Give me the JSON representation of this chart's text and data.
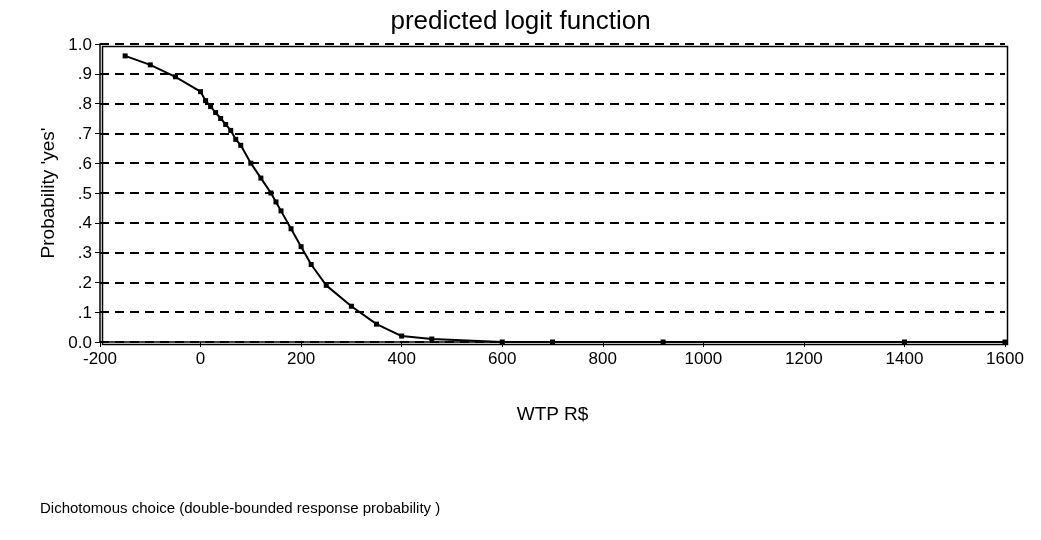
{
  "chart_data": {
    "type": "line",
    "title": "predicted logit function",
    "xlabel": "WTP R$",
    "ylabel": "Probability 'yes'",
    "annotations": [
      "Dichotomous choice (double-bounded response probability )"
    ],
    "x": [
      -150,
      -100,
      -50,
      0,
      10,
      20,
      30,
      40,
      50,
      60,
      70,
      80,
      100,
      120,
      140,
      150,
      160,
      180,
      200,
      220,
      250,
      300,
      350,
      400,
      460,
      600,
      700,
      920,
      1400,
      1600
    ],
    "series": [
      {
        "color": "#000000",
        "values": [
          0.96,
          0.93,
          0.89,
          0.84,
          0.81,
          0.79,
          0.77,
          0.75,
          0.73,
          0.71,
          0.68,
          0.66,
          0.6,
          0.55,
          0.5,
          0.47,
          0.44,
          0.38,
          0.32,
          0.26,
          0.19,
          0.12,
          0.06,
          0.02,
          0.01,
          0,
          0,
          0,
          0,
          0
        ]
      }
    ],
    "xlim": [
      -200,
      1600
    ],
    "xticks": [
      -200,
      0,
      200,
      400,
      600,
      800,
      1000,
      1200,
      1400,
      1600
    ],
    "ylim": [
      0,
      1
    ],
    "yticks": [
      {
        "value": 0,
        "label": "0.0"
      },
      {
        "value": 0.1,
        "label": ".1"
      },
      {
        "value": 0.2,
        "label": ".2"
      },
      {
        "value": 0.3,
        "label": ".3"
      },
      {
        "value": 0.4,
        "label": ".4"
      },
      {
        "value": 0.5,
        "label": ".5"
      },
      {
        "value": 0.6,
        "label": ".6"
      },
      {
        "value": 0.7,
        "label": ".7"
      },
      {
        "value": 0.8,
        "label": ".8"
      },
      {
        "value": 0.9,
        "label": ".9"
      },
      {
        "value": 1,
        "label": "1.0"
      }
    ],
    "grid": "y",
    "marker": "square",
    "line_style": "solid"
  }
}
